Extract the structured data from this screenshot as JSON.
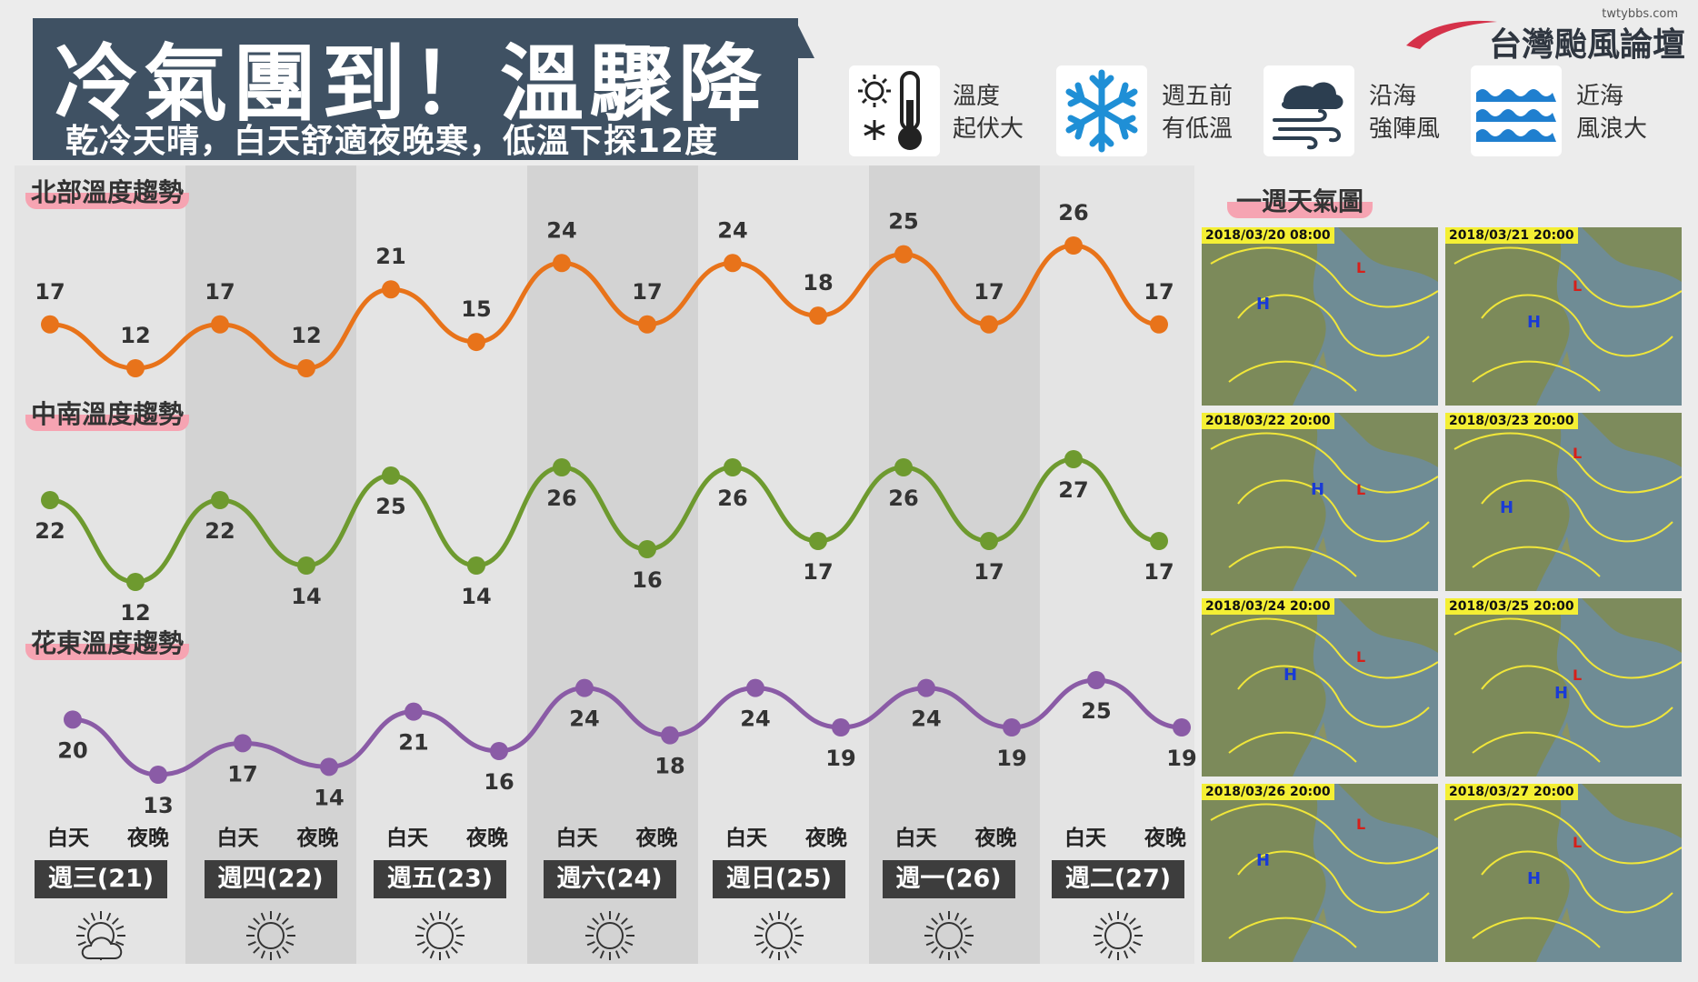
{
  "header": {
    "title": "冷氣團到！溫驟降",
    "subtitle": "乾冷天晴，白天舒適夜晚寒，低溫下探12度",
    "site_url": "twtybbs.com",
    "brand": "台灣颱風論壇"
  },
  "legend": [
    {
      "icon": "thermometer-sun-snow-icon",
      "text": "溫度\n起伏大",
      "line1": "溫度",
      "line2": "起伏大"
    },
    {
      "icon": "snowflake-icon",
      "line1": "週五前",
      "line2": "有低溫"
    },
    {
      "icon": "wind-icon",
      "line1": "沿海",
      "line2": "強陣風"
    },
    {
      "icon": "waves-icon",
      "line1": "近海",
      "line2": "風浪大"
    }
  ],
  "sections": {
    "north_label": "北部溫度趨勢",
    "central_south_label": "中南溫度趨勢",
    "east_label": "花東溫度趨勢"
  },
  "days": [
    {
      "label": "週三(21)",
      "weather_icon": "partly-cloudy-icon"
    },
    {
      "label": "週四(22)",
      "weather_icon": "sun-icon"
    },
    {
      "label": "週五(23)",
      "weather_icon": "sun-icon"
    },
    {
      "label": "週六(24)",
      "weather_icon": "sun-icon"
    },
    {
      "label": "週日(25)",
      "weather_icon": "sun-icon"
    },
    {
      "label": "週一(26)",
      "weather_icon": "sun-icon"
    },
    {
      "label": "週二(27)",
      "weather_icon": "sun-icon"
    }
  ],
  "dayparts": {
    "day": "白天",
    "night": "夜晚"
  },
  "chart_data": [
    {
      "type": "line",
      "title": "北部溫度趨勢",
      "x": [
        "週三(21) 白天",
        "週三(21) 夜晚",
        "週四(22) 白天",
        "週四(22) 夜晚",
        "週五(23) 白天",
        "週五(23) 夜晚",
        "週六(24) 白天",
        "週六(24) 夜晚",
        "週日(25) 白天",
        "週日(25) 夜晚",
        "週一(26) 白天",
        "週一(26) 夜晚",
        "週二(27) 白天",
        "週二(27) 夜晚"
      ],
      "values": [
        17,
        12,
        17,
        12,
        21,
        15,
        24,
        17,
        24,
        18,
        25,
        17,
        26,
        17
      ],
      "color": "#e8731a"
    },
    {
      "type": "line",
      "title": "中南溫度趨勢",
      "x": [
        "週三(21) 白天",
        "週三(21) 夜晚",
        "週四(22) 白天",
        "週四(22) 夜晚",
        "週五(23) 白天",
        "週五(23) 夜晚",
        "週六(24) 白天",
        "週六(24) 夜晚",
        "週日(25) 白天",
        "週日(25) 夜晚",
        "週一(26) 白天",
        "週一(26) 夜晚",
        "週二(27) 白天",
        "週二(27) 夜晚"
      ],
      "values": [
        22,
        12,
        22,
        14,
        25,
        14,
        26,
        16,
        26,
        17,
        26,
        17,
        27,
        17
      ],
      "color": "#6e9a2f"
    },
    {
      "type": "line",
      "title": "花東溫度趨勢",
      "x": [
        "週三(21) 白天",
        "週三(21) 夜晚",
        "週四(22) 白天",
        "週四(22) 夜晚",
        "週五(23) 白天",
        "週五(23) 夜晚",
        "週六(24) 白天",
        "週六(24) 夜晚",
        "週日(25) 白天",
        "週日(25) 夜晚",
        "週一(26) 白天",
        "週一(26) 夜晚",
        "週二(27) 白天",
        "週二(27) 夜晚"
      ],
      "values": [
        20,
        13,
        17,
        14,
        21,
        16,
        24,
        18,
        24,
        19,
        24,
        19,
        25,
        19
      ],
      "color": "#8a5ba6"
    }
  ],
  "weather_maps": {
    "title": "一週天氣圖",
    "dates": [
      "2018/03/20 08:00",
      "2018/03/21 20:00",
      "2018/03/22 20:00",
      "2018/03/23 20:00",
      "2018/03/24 20:00",
      "2018/03/25 20:00",
      "2018/03/26 20:00",
      "2018/03/27 20:00"
    ]
  }
}
